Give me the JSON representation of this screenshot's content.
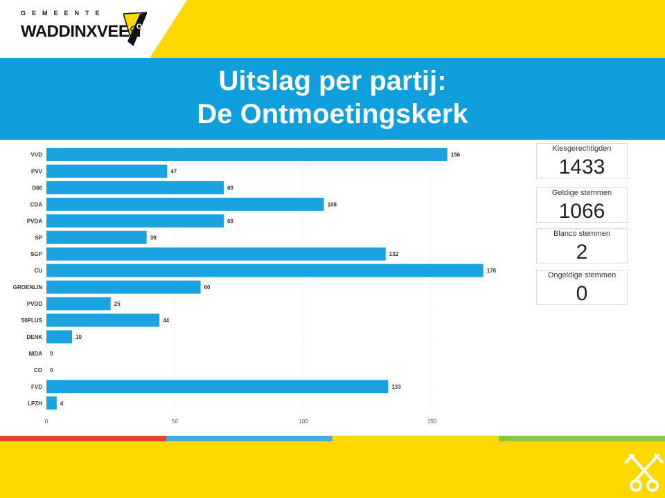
{
  "header": {
    "logo_small": "GEMEENTE",
    "logo_big": "WADDINXVEEN",
    "brand_yellow": "#ffd800"
  },
  "title": {
    "line1": "Uitslag per partij:",
    "line2": "De Ontmoetingskerk",
    "color": "#0f9fdc"
  },
  "stats": [
    {
      "label": "Kiesgerechtigden",
      "value": "1433"
    },
    {
      "label": "Geldige stemmen",
      "value": "1066"
    },
    {
      "label": "Blanco stemmen",
      "value": "2"
    },
    {
      "label": "Ongeldige stemmen",
      "value": "0"
    }
  ],
  "stripes": [
    "#e8432d",
    "#4aa7e0",
    "#ffd800",
    "#8cc63f"
  ],
  "chart_data": {
    "type": "bar",
    "orientation": "horizontal",
    "categories": [
      "VVD",
      "PVV",
      "D66",
      "CDA",
      "PVDA",
      "SP",
      "SGP",
      "CU",
      "GROENLIN",
      "PVDD",
      "50PLUS",
      "DENK",
      "NIDA",
      "CO",
      "FVD",
      "LPZH"
    ],
    "values": [
      156,
      47,
      69,
      108,
      69,
      39,
      132,
      170,
      60,
      25,
      44,
      10,
      0,
      0,
      133,
      4
    ],
    "xticks": [
      0,
      50,
      100,
      150
    ],
    "xlim": [
      0,
      170
    ],
    "bar_color": "#1aa3e0",
    "grid": true
  }
}
